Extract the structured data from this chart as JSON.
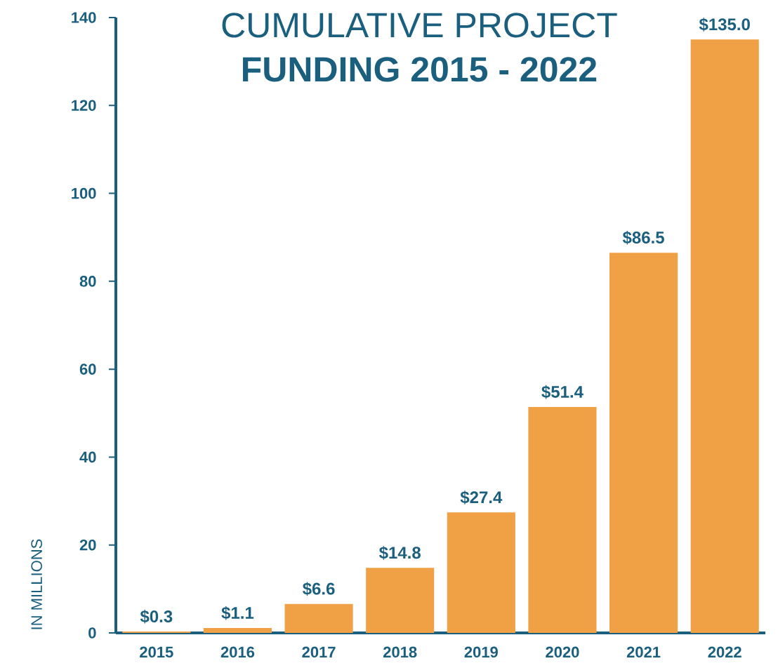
{
  "chart_data": {
    "type": "bar",
    "title": "CUMULATIVE PROJECT",
    "subtitle": "FUNDING 2015 - 2022",
    "ylabel": "IN MILLIONS",
    "categories": [
      "2015",
      "2016",
      "2017",
      "2018",
      "2019",
      "2020",
      "2021",
      "2022"
    ],
    "values": [
      0.3,
      1.1,
      6.6,
      14.8,
      27.4,
      51.4,
      86.5,
      135.0
    ],
    "value_labels": [
      "$0.3",
      "$1.1",
      "$6.6",
      "$14.8",
      "$27.4",
      "$51.4",
      "$86.5",
      "$135.0"
    ],
    "color": "#f0a045",
    "ylim": [
      0,
      140
    ],
    "yticks": [
      0,
      20,
      40,
      60,
      80,
      100,
      120,
      140
    ]
  }
}
